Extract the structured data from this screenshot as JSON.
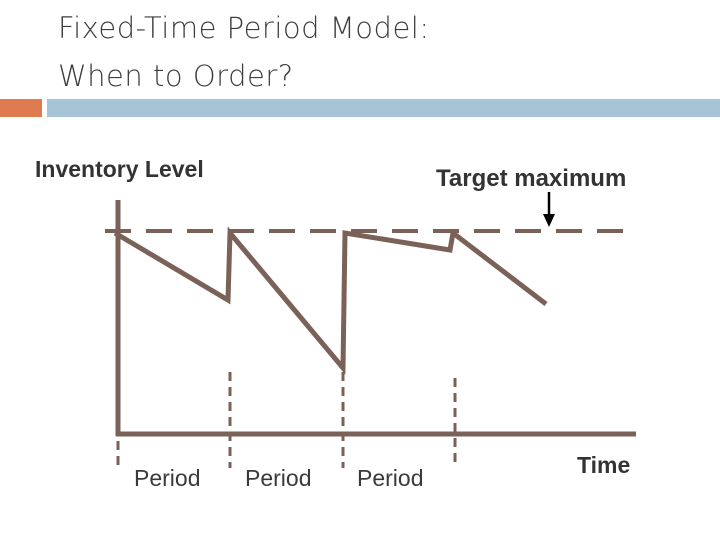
{
  "slide": {
    "title_line1": "Fixed-Time Period Model:",
    "title_line2": "When to Order?"
  },
  "diagram": {
    "y_label": "Inventory Level",
    "target_label": "Target maximum",
    "x_label": "Time",
    "period_labels": [
      "Period",
      "Period",
      "Period"
    ]
  },
  "colors": {
    "line": "#7a6258",
    "accent": "#e07b4f",
    "rule": "#a7c3d6",
    "arrow": "#000000"
  }
}
